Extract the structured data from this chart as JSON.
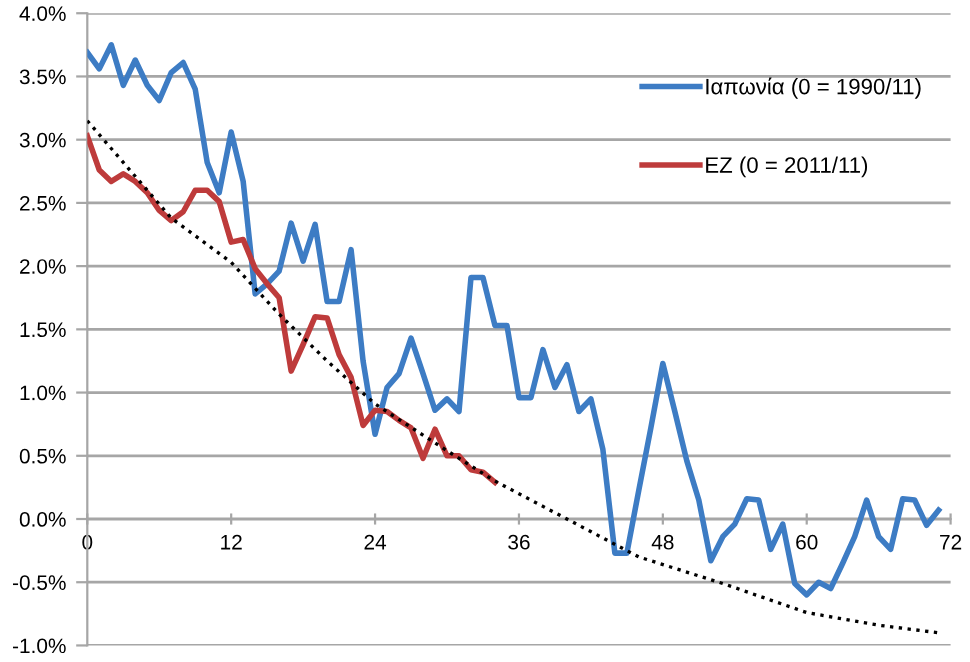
{
  "chart_data": {
    "type": "line",
    "x": [
      0,
      1,
      2,
      3,
      4,
      5,
      6,
      7,
      8,
      9,
      10,
      11,
      12,
      13,
      14,
      15,
      16,
      17,
      18,
      19,
      20,
      21,
      22,
      23,
      24,
      25,
      26,
      27,
      28,
      29,
      30,
      31,
      32,
      33,
      34,
      35,
      36,
      37,
      38,
      39,
      40,
      41,
      42,
      43,
      44,
      45,
      46,
      47,
      48,
      49,
      50,
      51,
      52,
      53,
      54,
      55,
      56,
      57,
      58,
      59,
      60,
      61,
      62,
      63,
      64,
      65,
      66,
      67,
      68,
      69,
      70,
      71
    ],
    "series": [
      {
        "name": "Ιαπωνία (0 = 1990/11)",
        "color": "#3d7cc4",
        "values": [
          3.69,
          3.56,
          3.75,
          3.43,
          3.63,
          3.43,
          3.31,
          3.53,
          3.61,
          3.4,
          2.82,
          2.58,
          3.06,
          2.67,
          1.78,
          1.86,
          1.96,
          2.34,
          2.04,
          2.33,
          1.72,
          1.72,
          2.13,
          1.25,
          0.67,
          1.04,
          1.15,
          1.43,
          1.15,
          0.86,
          0.95,
          0.85,
          1.91,
          1.91,
          1.53,
          1.53,
          0.96,
          0.96,
          1.34,
          1.04,
          1.22,
          0.85,
          0.95,
          0.55,
          -0.27,
          -0.27,
          0.23,
          0.72,
          1.23,
          0.85,
          0.46,
          0.15,
          -0.33,
          -0.14,
          -0.04,
          0.16,
          0.15,
          -0.24,
          -0.04,
          -0.51,
          -0.6,
          -0.5,
          -0.55,
          -0.35,
          -0.14,
          0.15,
          -0.14,
          -0.24,
          0.16,
          0.15,
          -0.05,
          0.07
        ]
      },
      {
        "name": "EZ (0 = 2011/11)",
        "color": "#be3b3b",
        "x": [
          0,
          1,
          2,
          3,
          4,
          5,
          6,
          7,
          8,
          9,
          10,
          11,
          12,
          13,
          14,
          15,
          16,
          17,
          18,
          19,
          20,
          21,
          22,
          23,
          24,
          25,
          26,
          27,
          28,
          29,
          30,
          31,
          32,
          33,
          34
        ],
        "values": [
          3.03,
          2.76,
          2.67,
          2.73,
          2.67,
          2.58,
          2.44,
          2.36,
          2.43,
          2.6,
          2.6,
          2.51,
          2.19,
          2.21,
          1.98,
          1.86,
          1.75,
          1.17,
          1.38,
          1.6,
          1.59,
          1.3,
          1.12,
          0.74,
          0.86,
          0.85,
          0.78,
          0.72,
          0.48,
          0.71,
          0.5,
          0.5,
          0.39,
          0.37,
          0.29
        ]
      },
      {
        "type": "line",
        "color": "#000000",
        "line_style": "dotted",
        "x": [
          0,
          7,
          12,
          16,
          20,
          24,
          30,
          34,
          40,
          46,
          53,
          60,
          66,
          71
        ],
        "values": [
          3.15,
          2.38,
          2.03,
          1.62,
          1.25,
          0.91,
          0.54,
          0.3,
          0.0,
          -0.3,
          -0.51,
          -0.74,
          -0.84,
          -0.9
        ]
      }
    ],
    "xlim": [
      0,
      72
    ],
    "xticks": [
      0,
      12,
      24,
      36,
      48,
      60,
      72
    ],
    "ylim": [
      -1,
      4
    ],
    "yticks": [
      {
        "value": -1,
        "label": "-1.0%"
      },
      {
        "value": -0.5,
        "label": "-0.5%"
      },
      {
        "value": 0,
        "label": "0.0%"
      },
      {
        "value": 0.5,
        "label": "0.5%"
      },
      {
        "value": 1,
        "label": "1.0%"
      },
      {
        "value": 1.5,
        "label": "1.5%"
      },
      {
        "value": 2,
        "label": "2.0%"
      },
      {
        "value": 2.5,
        "label": "2.5%"
      },
      {
        "value": 3,
        "label": "3.0%"
      },
      {
        "value": 3.5,
        "label": "3.5%"
      },
      {
        "value": 4,
        "label": "4.0%"
      }
    ],
    "grid": "y",
    "legend": "top right",
    "marker": "none",
    "line_style": "solid"
  }
}
